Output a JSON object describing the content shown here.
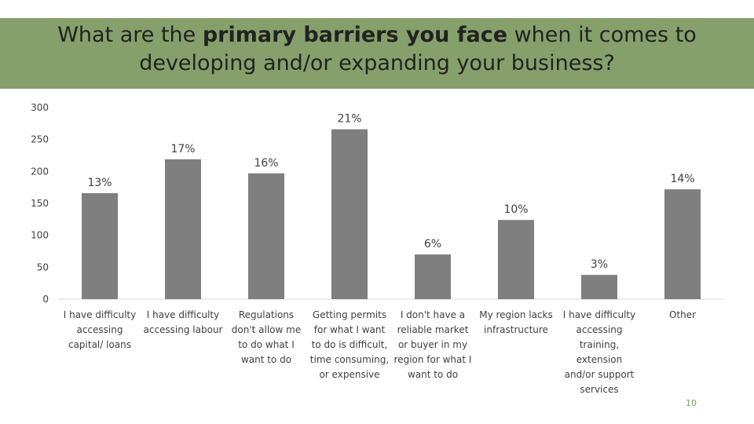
{
  "slide": {
    "title_part1": "What are the ",
    "title_emphasis": "primary barriers you face",
    "title_part2": " when it comes to developing and/or expanding your business?",
    "slide_number": "10"
  },
  "colors": {
    "title_band": "#86a06b",
    "bar": "#7f7f7f",
    "text": "#404040"
  },
  "chart_data": {
    "type": "bar",
    "title": "What are the primary barriers you face when it comes to developing and/or expanding your business?",
    "xlabel": "",
    "ylabel": "",
    "ylim": [
      0,
      300
    ],
    "yticks": [
      0,
      50,
      100,
      150,
      200,
      250,
      300
    ],
    "grid": false,
    "legend": "none",
    "categories": [
      [
        "I have difficulty",
        "accessing",
        "capital/ loans"
      ],
      [
        "I have difficulty",
        "accessing labour"
      ],
      [
        "Regulations",
        "don't allow me",
        "to do what I",
        "want to do"
      ],
      [
        "Getting permits",
        "for what I want",
        "to do is difficult,",
        "time consuming,",
        "or expensive"
      ],
      [
        "I don't have a",
        "reliable market",
        "or buyer in my",
        "region for what I",
        "want to do"
      ],
      [
        "My region lacks",
        "infrastructure"
      ],
      [
        "I have difficulty",
        "accessing",
        "training,",
        "extension",
        "and/or support",
        "services"
      ],
      [
        "Other"
      ]
    ],
    "values": [
      166,
      219,
      197,
      266,
      70,
      124,
      38,
      172
    ],
    "data_labels": [
      "13%",
      "17%",
      "16%",
      "21%",
      "6%",
      "10%",
      "3%",
      "14%"
    ]
  }
}
